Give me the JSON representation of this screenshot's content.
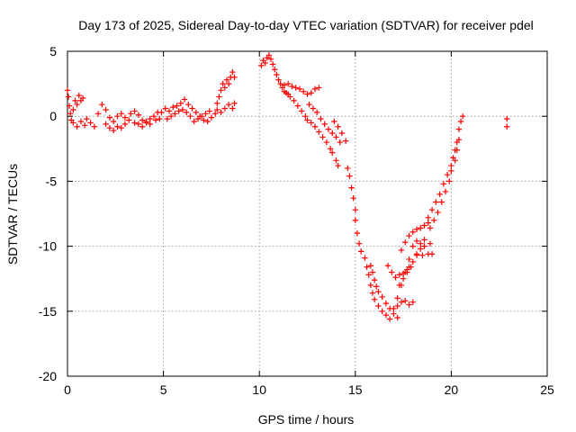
{
  "chart_data": {
    "type": "scatter",
    "title": "Day 173 of 2025, Sidereal Day-to-day VTEC variation (SDTVAR) for receiver pdel",
    "xlabel": "GPS time / hours",
    "ylabel": "SDTVAR / TECUs",
    "xlim": [
      0,
      25
    ],
    "ylim": [
      -20,
      5
    ],
    "xticks": [
      "0",
      "5",
      "10",
      "15",
      "20",
      "25"
    ],
    "yticks": [
      "5",
      "0",
      "-5",
      "-10",
      "-15",
      "-20"
    ],
    "grid": true,
    "marker": "+",
    "color": "#ff0000",
    "series": [
      {
        "name": "SDTVAR",
        "points": [
          [
            0.0,
            2.0
          ],
          [
            0.05,
            1.5
          ],
          [
            0.1,
            0.8
          ],
          [
            0.15,
            0.2
          ],
          [
            0.2,
            -0.3
          ],
          [
            0.3,
            0.5
          ],
          [
            0.4,
            1.2
          ],
          [
            0.5,
            0.9
          ],
          [
            0.6,
            1.6
          ],
          [
            0.7,
            1.2
          ],
          [
            0.8,
            1.4
          ],
          [
            0.3,
            -0.5
          ],
          [
            0.5,
            -0.8
          ],
          [
            0.7,
            -0.4
          ],
          [
            0.9,
            -0.7
          ],
          [
            1.0,
            -0.2
          ],
          [
            1.2,
            -0.5
          ],
          [
            1.4,
            -0.8
          ],
          [
            1.6,
            0.2
          ],
          [
            1.8,
            0.9
          ],
          [
            2.0,
            0.5
          ],
          [
            2.2,
            -0.1
          ],
          [
            2.4,
            -0.4
          ],
          [
            2.6,
            0.0
          ],
          [
            2.8,
            0.2
          ],
          [
            3.0,
            -0.1
          ],
          [
            2.0,
            -0.6
          ],
          [
            2.2,
            -0.9
          ],
          [
            2.4,
            -1.1
          ],
          [
            2.6,
            -0.8
          ],
          [
            2.8,
            -0.9
          ],
          [
            3.0,
            -0.6
          ],
          [
            3.2,
            -0.3
          ],
          [
            3.3,
            0.2
          ],
          [
            3.5,
            0.4
          ],
          [
            3.7,
            0.1
          ],
          [
            3.9,
            -0.3
          ],
          [
            4.1,
            -0.4
          ],
          [
            4.3,
            -0.2
          ],
          [
            4.5,
            0.0
          ],
          [
            4.7,
            0.3
          ],
          [
            3.5,
            -0.5
          ],
          [
            3.7,
            -0.6
          ],
          [
            3.9,
            -0.8
          ],
          [
            4.1,
            -0.5
          ],
          [
            4.3,
            -0.6
          ],
          [
            4.6,
            -0.3
          ],
          [
            4.8,
            -0.2
          ],
          [
            4.9,
            0.3
          ],
          [
            5.1,
            0.6
          ],
          [
            5.3,
            0.4
          ],
          [
            5.5,
            0.7
          ],
          [
            5.7,
            0.8
          ],
          [
            5.9,
            1.0
          ],
          [
            6.1,
            1.3
          ],
          [
            6.3,
            0.9
          ],
          [
            5.2,
            -0.2
          ],
          [
            5.4,
            0.0
          ],
          [
            5.6,
            0.2
          ],
          [
            5.8,
            0.4
          ],
          [
            6.0,
            0.5
          ],
          [
            6.2,
            0.3
          ],
          [
            6.4,
            0.0
          ],
          [
            6.5,
            0.6
          ],
          [
            6.7,
            0.3
          ],
          [
            6.9,
            0.0
          ],
          [
            7.1,
            -0.3
          ],
          [
            7.3,
            -0.4
          ],
          [
            7.5,
            -0.1
          ],
          [
            7.7,
            0.2
          ],
          [
            6.6,
            -0.4
          ],
          [
            6.8,
            -0.2
          ],
          [
            7.0,
            0.0
          ],
          [
            7.2,
            0.2
          ],
          [
            7.4,
            0.4
          ],
          [
            7.8,
            0.5
          ],
          [
            8.0,
            0.3
          ],
          [
            8.2,
            0.6
          ],
          [
            8.4,
            0.9
          ],
          [
            8.6,
            0.6
          ],
          [
            8.7,
            1.0
          ],
          [
            7.8,
            1.0
          ],
          [
            7.9,
            1.5
          ],
          [
            8.0,
            2.0
          ],
          [
            8.1,
            2.5
          ],
          [
            8.2,
            2.2
          ],
          [
            8.3,
            2.8
          ],
          [
            8.4,
            2.5
          ],
          [
            8.5,
            3.0
          ],
          [
            8.6,
            3.4
          ],
          [
            8.7,
            3.0
          ],
          [
            10.1,
            3.9
          ],
          [
            10.2,
            4.3
          ],
          [
            10.3,
            4.1
          ],
          [
            10.4,
            4.5
          ],
          [
            10.5,
            4.7
          ],
          [
            10.6,
            4.4
          ],
          [
            10.7,
            4.0
          ],
          [
            10.8,
            3.6
          ],
          [
            10.9,
            3.2
          ],
          [
            11.0,
            2.8
          ],
          [
            11.1,
            2.5
          ],
          [
            11.2,
            2.2
          ],
          [
            11.3,
            1.9
          ],
          [
            11.4,
            1.8
          ],
          [
            11.5,
            1.7
          ],
          [
            11.6,
            1.5
          ],
          [
            11.8,
            1.2
          ],
          [
            12.0,
            0.8
          ],
          [
            12.2,
            0.4
          ],
          [
            12.4,
            0.0
          ],
          [
            11.3,
            2.4
          ],
          [
            11.5,
            2.5
          ],
          [
            11.7,
            2.3
          ],
          [
            11.9,
            2.2
          ],
          [
            12.1,
            2.1
          ],
          [
            12.3,
            1.9
          ],
          [
            12.5,
            1.7
          ],
          [
            12.7,
            1.8
          ],
          [
            12.9,
            2.1
          ],
          [
            13.1,
            2.2
          ],
          [
            12.5,
            -0.3
          ],
          [
            12.7,
            -0.5
          ],
          [
            12.9,
            -0.8
          ],
          [
            13.1,
            -1.2
          ],
          [
            13.3,
            -1.6
          ],
          [
            13.5,
            -2.0
          ],
          [
            13.7,
            -2.5
          ],
          [
            13.8,
            -2.8
          ],
          [
            14.0,
            -3.4
          ],
          [
            14.1,
            -3.8
          ],
          [
            12.6,
            0.9
          ],
          [
            12.8,
            0.6
          ],
          [
            13.0,
            0.3
          ],
          [
            13.2,
            -0.2
          ],
          [
            13.4,
            -0.6
          ],
          [
            13.6,
            -1.0
          ],
          [
            13.8,
            -1.3
          ],
          [
            14.0,
            -1.6
          ],
          [
            14.2,
            -2.0
          ],
          [
            13.9,
            -0.4
          ],
          [
            14.1,
            -0.8
          ],
          [
            14.3,
            -1.3
          ],
          [
            14.5,
            -1.9
          ],
          [
            14.6,
            -4.0
          ],
          [
            14.7,
            -4.6
          ],
          [
            14.8,
            -5.5
          ],
          [
            14.9,
            -6.3
          ],
          [
            15.0,
            -7.2
          ],
          [
            15.0,
            -8.0
          ],
          [
            15.1,
            -9.0
          ],
          [
            15.2,
            -9.8
          ],
          [
            15.3,
            -10.4
          ],
          [
            15.5,
            -10.9
          ],
          [
            15.6,
            -11.6
          ],
          [
            15.7,
            -12.2
          ],
          [
            15.8,
            -13.0
          ],
          [
            15.9,
            -13.6
          ],
          [
            16.0,
            -14.1
          ],
          [
            16.2,
            -14.6
          ],
          [
            16.4,
            -15.0
          ],
          [
            16.6,
            -15.3
          ],
          [
            16.8,
            -15.6
          ],
          [
            15.8,
            -11.5
          ],
          [
            15.9,
            -12.0
          ],
          [
            16.0,
            -12.6
          ],
          [
            16.1,
            -13.1
          ],
          [
            16.2,
            -13.5
          ],
          [
            16.4,
            -13.9
          ],
          [
            16.6,
            -14.4
          ],
          [
            16.8,
            -14.8
          ],
          [
            17.0,
            -15.2
          ],
          [
            17.2,
            -15.5
          ],
          [
            16.7,
            -11.5
          ],
          [
            16.9,
            -12.0
          ],
          [
            17.1,
            -12.4
          ],
          [
            17.3,
            -12.2
          ],
          [
            17.5,
            -12.1
          ],
          [
            17.7,
            -11.8
          ],
          [
            17.8,
            -11.6
          ],
          [
            17.0,
            -14.8
          ],
          [
            17.2,
            -14.6
          ],
          [
            17.4,
            -14.3
          ],
          [
            17.6,
            -14.2
          ],
          [
            17.8,
            -14.5
          ],
          [
            18.0,
            -14.3
          ],
          [
            17.3,
            -13.0
          ],
          [
            17.5,
            -12.5
          ],
          [
            17.7,
            -12.0
          ],
          [
            17.9,
            -11.6
          ],
          [
            18.0,
            -11.2
          ],
          [
            18.2,
            -10.6
          ],
          [
            18.4,
            -10.2
          ],
          [
            18.6,
            -10.0
          ],
          [
            18.9,
            -9.8
          ],
          [
            17.4,
            -10.3
          ],
          [
            17.6,
            -9.7
          ],
          [
            17.8,
            -9.2
          ],
          [
            18.0,
            -8.9
          ],
          [
            18.2,
            -8.7
          ],
          [
            18.4,
            -8.6
          ],
          [
            18.6,
            -8.4
          ],
          [
            18.8,
            -8.2
          ],
          [
            17.2,
            -14.0
          ],
          [
            17.4,
            -13.0
          ],
          [
            17.6,
            -12.0
          ],
          [
            17.8,
            -11.0
          ],
          [
            18.0,
            -10.0
          ],
          [
            18.2,
            -9.6
          ],
          [
            18.4,
            -9.8
          ],
          [
            18.6,
            -9.5
          ],
          [
            18.2,
            -10.7
          ],
          [
            18.5,
            -10.7
          ],
          [
            18.8,
            -10.6
          ],
          [
            19.0,
            -10.6
          ],
          [
            18.8,
            -7.8
          ],
          [
            19.0,
            -7.2
          ],
          [
            19.2,
            -6.6
          ],
          [
            19.4,
            -6.0
          ],
          [
            19.6,
            -5.2
          ],
          [
            19.8,
            -4.5
          ],
          [
            20.0,
            -3.8
          ],
          [
            20.1,
            -3.2
          ],
          [
            20.2,
            -2.6
          ],
          [
            20.3,
            -2.0
          ],
          [
            18.9,
            -8.6
          ],
          [
            19.1,
            -8.0
          ],
          [
            19.3,
            -7.4
          ],
          [
            19.5,
            -6.6
          ],
          [
            19.7,
            -5.8
          ],
          [
            19.9,
            -5.0
          ],
          [
            20.0,
            -4.2
          ],
          [
            20.2,
            -3.4
          ],
          [
            20.3,
            -2.6
          ],
          [
            20.4,
            -1.8
          ],
          [
            20.4,
            -1.0
          ],
          [
            20.5,
            -0.4
          ],
          [
            20.6,
            0.0
          ],
          [
            22.9,
            -0.2
          ],
          [
            22.9,
            -0.8
          ]
        ]
      }
    ]
  }
}
